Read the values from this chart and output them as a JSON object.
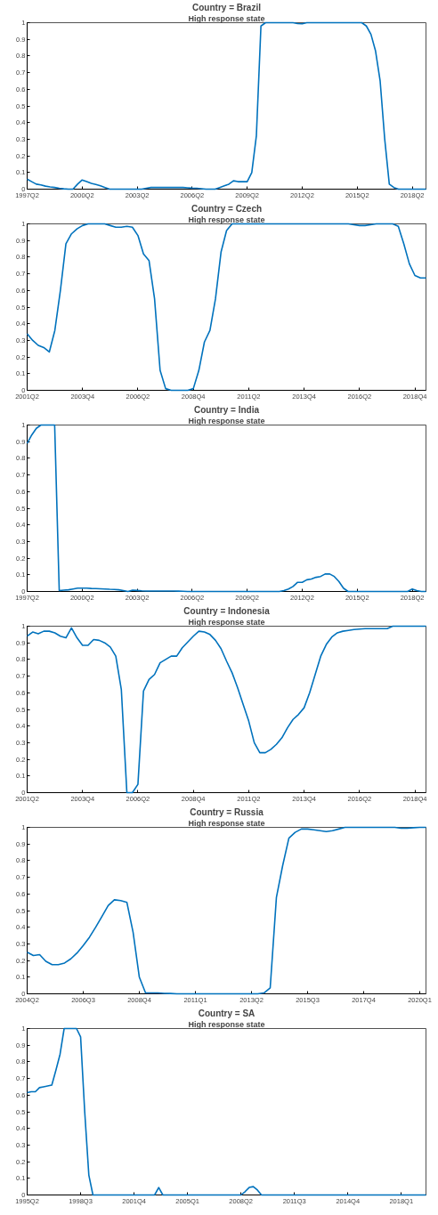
{
  "chart_data": [
    {
      "type": "line",
      "title": "Country = Brazil",
      "subtitle": "High response state",
      "categories": [
        "1997Q2",
        null,
        null,
        null,
        null,
        null,
        null,
        null,
        null,
        null,
        null,
        null,
        "2000Q2",
        null,
        null,
        null,
        null,
        null,
        null,
        null,
        null,
        null,
        null,
        null,
        "2003Q2",
        null,
        null,
        null,
        null,
        null,
        null,
        null,
        null,
        null,
        null,
        null,
        "2006Q2",
        null,
        null,
        null,
        null,
        null,
        null,
        null,
        null,
        null,
        null,
        null,
        "2009Q2",
        null,
        null,
        null,
        null,
        null,
        null,
        null,
        null,
        null,
        null,
        null,
        "2012Q2",
        null,
        null,
        null,
        null,
        null,
        null,
        null,
        null,
        null,
        null,
        null,
        "2015Q2",
        null,
        null,
        null,
        null,
        null,
        null,
        null,
        null,
        null,
        null,
        null,
        "2018Q2",
        null,
        null,
        null
      ],
      "series": [
        {
          "color": "#0072bd",
          "values": [
            0.06,
            0.045,
            0.03,
            0.025,
            0.018,
            0.013,
            0.01,
            0.005,
            0.002,
            0,
            0,
            0.03,
            0.055,
            0.045,
            0.035,
            0.028,
            0.02,
            0.01,
            0,
            0,
            0,
            0,
            0,
            0,
            0,
            0,
            0.005,
            0.01,
            0.01,
            0.01,
            0.01,
            0.01,
            0.01,
            0.01,
            0.01,
            0.008,
            0.006,
            0.005,
            0.003,
            0,
            0,
            0,
            0.01,
            0.02,
            0.03,
            0.05,
            0.045,
            0.045,
            0.045,
            0.1,
            0.32,
            0.98,
            1,
            1,
            1,
            1,
            1,
            1,
            1,
            0.995,
            0.993,
            1,
            1,
            1,
            1,
            1,
            1,
            1,
            1,
            1,
            1,
            1,
            1,
            1,
            0.98,
            0.93,
            0.83,
            0.65,
            0.3,
            0.03,
            0.01,
            0,
            0,
            0,
            0,
            0,
            0,
            0
          ]
        }
      ],
      "ylim": [
        0,
        1
      ],
      "yticks": [
        0,
        0.1,
        0.2,
        0.3,
        0.4,
        0.5,
        0.6,
        0.7,
        0.8,
        0.9,
        1
      ]
    },
    {
      "type": "line",
      "title": "Country = Czech",
      "subtitle": "High response state",
      "categories": [
        "2001Q2",
        null,
        null,
        null,
        null,
        null,
        null,
        null,
        null,
        null,
        "2003Q4",
        null,
        null,
        null,
        null,
        null,
        null,
        null,
        null,
        null,
        "2006Q2",
        null,
        null,
        null,
        null,
        null,
        null,
        null,
        null,
        null,
        "2008Q4",
        null,
        null,
        null,
        null,
        null,
        null,
        null,
        null,
        null,
        "2011Q2",
        null,
        null,
        null,
        null,
        null,
        null,
        null,
        null,
        null,
        "2013Q4",
        null,
        null,
        null,
        null,
        null,
        null,
        null,
        null,
        null,
        "2016Q2",
        null,
        null,
        null,
        null,
        null,
        null,
        null,
        null,
        null,
        "2018Q4",
        null,
        null
      ],
      "series": [
        {
          "color": "#0072bd",
          "values": [
            0.34,
            0.3,
            0.27,
            0.257,
            0.23,
            0.36,
            0.6,
            0.88,
            0.94,
            0.97,
            0.99,
            1,
            1,
            1,
            1,
            0.99,
            0.98,
            0.98,
            0.985,
            0.98,
            0.93,
            0.82,
            0.78,
            0.55,
            0.12,
            0.01,
            0,
            0,
            0,
            0,
            0.01,
            0.12,
            0.29,
            0.36,
            0.55,
            0.83,
            0.96,
            1,
            1,
            1,
            1,
            1,
            1,
            1,
            1,
            1,
            1,
            1,
            1,
            1,
            1,
            1,
            1,
            1,
            1,
            1,
            1,
            1,
            1,
            0.995,
            0.99,
            0.99,
            0.995,
            1,
            1,
            1,
            1,
            0.985,
            0.88,
            0.76,
            0.69,
            0.675,
            0.675
          ]
        }
      ],
      "ylim": [
        0,
        1
      ],
      "yticks": [
        0,
        0.1,
        0.2,
        0.3,
        0.4,
        0.5,
        0.6,
        0.7,
        0.8,
        0.9,
        1
      ]
    },
    {
      "type": "line",
      "title": "Country = India",
      "subtitle": "High response state",
      "categories": [
        "1997Q2",
        null,
        null,
        null,
        null,
        null,
        null,
        null,
        null,
        null,
        null,
        null,
        "2000Q2",
        null,
        null,
        null,
        null,
        null,
        null,
        null,
        null,
        null,
        null,
        null,
        "2003Q2",
        null,
        null,
        null,
        null,
        null,
        null,
        null,
        null,
        null,
        null,
        null,
        "2006Q2",
        null,
        null,
        null,
        null,
        null,
        null,
        null,
        null,
        null,
        null,
        null,
        "2009Q2",
        null,
        null,
        null,
        null,
        null,
        null,
        null,
        null,
        null,
        null,
        null,
        "2012Q2",
        null,
        null,
        null,
        null,
        null,
        null,
        null,
        null,
        null,
        null,
        null,
        "2015Q2",
        null,
        null,
        null,
        null,
        null,
        null,
        null,
        null,
        null,
        null,
        null,
        "2018Q2",
        null,
        null,
        null
      ],
      "series": [
        {
          "color": "#0072bd",
          "values": [
            0.89,
            0.94,
            0.98,
            1,
            1,
            1,
            1,
            0.005,
            0.008,
            0.01,
            0.015,
            0.02,
            0.02,
            0.02,
            0.018,
            0.017,
            0.016,
            0.015,
            0.013,
            0.012,
            0.01,
            0.005,
            0,
            0.008,
            0.006,
            0.004,
            0.003,
            0.003,
            0.003,
            0.003,
            0.003,
            0.003,
            0.003,
            0.002,
            0.001,
            0,
            0,
            0,
            0,
            0,
            0,
            0,
            0,
            0,
            0,
            0,
            0,
            0,
            0,
            0,
            0,
            0,
            0,
            0,
            0,
            0,
            0.005,
            0.015,
            0.03,
            0.055,
            0.055,
            0.07,
            0.075,
            0.085,
            0.09,
            0.105,
            0.105,
            0.09,
            0.06,
            0.02,
            0,
            0,
            0,
            0,
            0,
            0,
            0,
            0,
            0,
            0,
            0,
            0,
            0,
            0,
            0.015,
            0.005,
            0,
            0
          ]
        }
      ],
      "ylim": [
        0,
        1
      ],
      "yticks": [
        0,
        0.1,
        0.2,
        0.3,
        0.4,
        0.5,
        0.6,
        0.7,
        0.8,
        0.9,
        1
      ]
    },
    {
      "type": "line",
      "title": "Country = Indonesia",
      "subtitle": "High response state",
      "categories": [
        "2001Q2",
        null,
        null,
        null,
        null,
        null,
        null,
        null,
        null,
        null,
        "2003Q4",
        null,
        null,
        null,
        null,
        null,
        null,
        null,
        null,
        null,
        "2006Q2",
        null,
        null,
        null,
        null,
        null,
        null,
        null,
        null,
        null,
        "2008Q4",
        null,
        null,
        null,
        null,
        null,
        null,
        null,
        null,
        null,
        "2011Q2",
        null,
        null,
        null,
        null,
        null,
        null,
        null,
        null,
        null,
        "2013Q4",
        null,
        null,
        null,
        null,
        null,
        null,
        null,
        null,
        null,
        "2016Q2",
        null,
        null,
        null,
        null,
        null,
        null,
        null,
        null,
        null,
        "2018Q4",
        null,
        null
      ],
      "series": [
        {
          "color": "#0072bd",
          "values": [
            0.94,
            0.965,
            0.955,
            0.97,
            0.97,
            0.96,
            0.94,
            0.93,
            0.99,
            0.93,
            0.885,
            0.885,
            0.92,
            0.915,
            0.9,
            0.875,
            0.82,
            0.62,
            0,
            0,
            0.05,
            0.61,
            0.68,
            0.71,
            0.78,
            0.8,
            0.82,
            0.82,
            0.87,
            0.905,
            0.94,
            0.97,
            0.965,
            0.95,
            0.915,
            0.865,
            0.79,
            0.72,
            0.63,
            0.53,
            0.43,
            0.3,
            0.24,
            0.24,
            0.26,
            0.29,
            0.33,
            0.39,
            0.44,
            0.47,
            0.51,
            0.6,
            0.71,
            0.82,
            0.89,
            0.935,
            0.96,
            0.97,
            0.975,
            0.98,
            0.983,
            0.985,
            0.985,
            0.985,
            0.985,
            0.985,
            1,
            1,
            1,
            1,
            1,
            1,
            1
          ]
        }
      ],
      "ylim": [
        0,
        1
      ],
      "yticks": [
        0,
        0.1,
        0.2,
        0.3,
        0.4,
        0.5,
        0.6,
        0.7,
        0.8,
        0.9,
        1
      ]
    },
    {
      "type": "line",
      "title": "Country = Russia",
      "subtitle": "High response state",
      "categories": [
        "2004Q2",
        null,
        null,
        null,
        null,
        null,
        null,
        null,
        null,
        "2006Q3",
        null,
        null,
        null,
        null,
        null,
        null,
        null,
        null,
        "2008Q4",
        null,
        null,
        null,
        null,
        null,
        null,
        null,
        null,
        "2011Q1",
        null,
        null,
        null,
        null,
        null,
        null,
        null,
        null,
        "2013Q2",
        null,
        null,
        null,
        null,
        null,
        null,
        null,
        null,
        "2015Q3",
        null,
        null,
        null,
        null,
        null,
        null,
        null,
        null,
        "2017Q4",
        null,
        null,
        null,
        null,
        null,
        null,
        null,
        null,
        "2020Q1",
        null
      ],
      "series": [
        {
          "color": "#0072bd",
          "values": [
            0.25,
            0.23,
            0.235,
            0.195,
            0.175,
            0.175,
            0.185,
            0.21,
            0.245,
            0.29,
            0.34,
            0.4,
            0.465,
            0.53,
            0.565,
            0.56,
            0.55,
            0.37,
            0.1,
            0.005,
            0.005,
            0.005,
            0.003,
            0.002,
            0,
            0,
            0,
            0,
            0,
            0,
            0,
            0,
            0,
            0,
            0,
            0,
            0,
            0,
            0.005,
            0.035,
            0.58,
            0.77,
            0.935,
            0.97,
            0.99,
            0.99,
            0.985,
            0.98,
            0.975,
            0.98,
            0.99,
            1,
            1,
            1,
            1,
            1,
            1,
            1,
            1,
            1,
            0.995,
            0.995,
            0.998,
            1,
            1
          ]
        }
      ],
      "ylim": [
        0,
        1
      ],
      "yticks": [
        0,
        0.1,
        0.2,
        0.3,
        0.4,
        0.5,
        0.6,
        0.7,
        0.8,
        0.9,
        1
      ]
    },
    {
      "type": "line",
      "title": "Country = SA",
      "subtitle": "High response state",
      "categories": [
        "1995Q2",
        null,
        null,
        null,
        null,
        null,
        null,
        null,
        null,
        null,
        null,
        null,
        null,
        "1998Q3",
        null,
        null,
        null,
        null,
        null,
        null,
        null,
        null,
        null,
        null,
        null,
        null,
        "2001Q4",
        null,
        null,
        null,
        null,
        null,
        null,
        null,
        null,
        null,
        null,
        null,
        null,
        "2005Q1",
        null,
        null,
        null,
        null,
        null,
        null,
        null,
        null,
        null,
        null,
        null,
        null,
        "2008Q2",
        null,
        null,
        null,
        null,
        null,
        null,
        null,
        null,
        null,
        null,
        null,
        null,
        "2011Q3",
        null,
        null,
        null,
        null,
        null,
        null,
        null,
        null,
        null,
        null,
        null,
        null,
        "2014Q4",
        null,
        null,
        null,
        null,
        null,
        null,
        null,
        null,
        null,
        null,
        null,
        null,
        "2018Q1",
        null,
        null,
        null,
        null,
        null,
        null
      ],
      "series": [
        {
          "color": "#0072bd",
          "values": [
            0.615,
            0.62,
            0.62,
            0.645,
            0.65,
            0.655,
            0.66,
            0.75,
            0.845,
            1,
            1,
            1,
            1,
            0.95,
            0.5,
            0.12,
            0,
            0,
            0,
            0,
            0,
            0,
            0,
            0,
            0,
            0,
            0,
            0,
            0,
            0,
            0,
            0,
            0.045,
            0,
            0,
            0,
            0,
            0,
            0,
            0,
            0,
            0,
            0,
            0,
            0,
            0,
            0,
            0,
            0,
            0,
            0,
            0,
            0,
            0.02,
            0.045,
            0.05,
            0.03,
            0,
            0,
            0,
            0,
            0,
            0,
            0,
            0,
            0,
            0,
            0,
            0,
            0,
            0,
            0,
            0,
            0,
            0,
            0,
            0,
            0,
            0,
            0,
            0,
            0,
            0,
            0,
            0,
            0,
            0,
            0,
            0,
            0,
            0,
            0,
            0,
            0,
            0,
            0,
            0,
            0
          ]
        }
      ],
      "ylim": [
        0,
        1
      ],
      "yticks": [
        0,
        0.1,
        0.2,
        0.3,
        0.4,
        0.5,
        0.6,
        0.7,
        0.8,
        0.9,
        1
      ]
    }
  ]
}
